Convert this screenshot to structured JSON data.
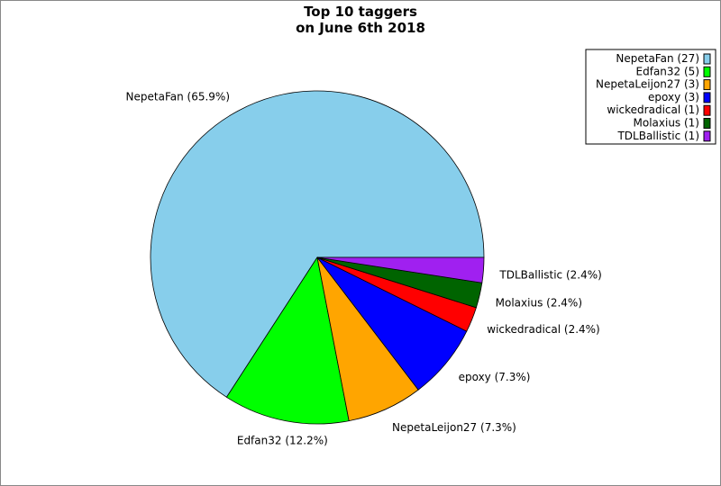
{
  "chart_data": {
    "type": "pie",
    "title": [
      "Top 10 taggers",
      "on June 6th 2018"
    ],
    "legend_position": "top-right",
    "start_angle_deg": 0,
    "direction": "counterclockwise",
    "slices": [
      {
        "name": "NepetaFan",
        "value": 27,
        "percent_label": "NepetaFan (65.9%)",
        "legend_label": "NepetaFan (27)",
        "color": "#87CEEB"
      },
      {
        "name": "Edfan32",
        "value": 5,
        "percent_label": "Edfan32 (12.2%)",
        "legend_label": "Edfan32 (5)",
        "color": "#00FF00"
      },
      {
        "name": "NepetaLeijon27",
        "value": 3,
        "percent_label": "NepetaLeijon27 (7.3%)",
        "legend_label": "NepetaLeijon27 (3)",
        "color": "#FFA500"
      },
      {
        "name": "epoxy",
        "value": 3,
        "percent_label": "epoxy (7.3%)",
        "legend_label": "epoxy (3)",
        "color": "#0000FF"
      },
      {
        "name": "wickedradical",
        "value": 1,
        "percent_label": "wickedradical (2.4%)",
        "legend_label": "wickedradical (1)",
        "color": "#FF0000"
      },
      {
        "name": "Molaxius",
        "value": 1,
        "percent_label": "Molaxius (2.4%)",
        "legend_label": "Molaxius (1)",
        "color": "#006400"
      },
      {
        "name": "TDLBallistic",
        "value": 1,
        "percent_label": "TDLBallistic (2.4%)",
        "legend_label": "TDLBallistic (1)",
        "color": "#A020F0"
      }
    ]
  }
}
